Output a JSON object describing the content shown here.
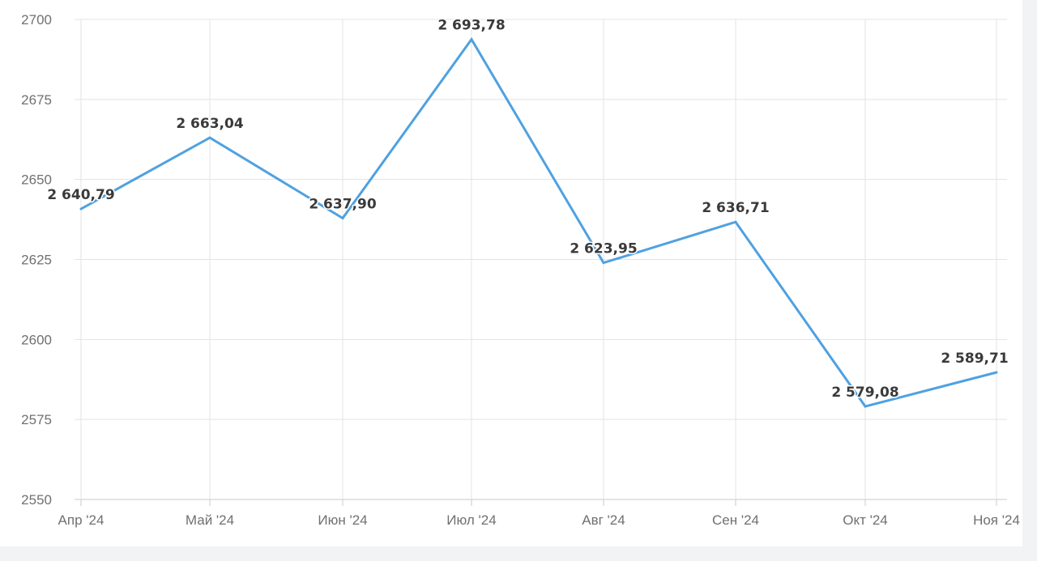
{
  "chart_data": {
    "type": "line",
    "categories": [
      "Апр '24",
      "Май '24",
      "Июн '24",
      "Июл '24",
      "Авг '24",
      "Сен '24",
      "Окт '24",
      "Ноя '24"
    ],
    "series": [
      {
        "values": [
          2640.79,
          2663.04,
          2637.9,
          2693.78,
          2623.95,
          2636.71,
          2579.08,
          2589.71
        ],
        "color": "#4fa1e0"
      }
    ],
    "data_labels": [
      "2 640,79",
      "2 663,04",
      "2 637,90",
      "2 693,78",
      "2 623,95",
      "2 636,71",
      "2 579,08",
      "2 589,71"
    ],
    "y_ticks": [
      "2550",
      "2575",
      "2600",
      "2625",
      "2650",
      "2675",
      "2700"
    ],
    "y_tick_values": [
      2550,
      2575,
      2600,
      2625,
      2650,
      2675,
      2700
    ],
    "ylim": [
      2550,
      2700
    ],
    "grid": true,
    "legend": "none",
    "title": "",
    "xlabel": "",
    "ylabel": ""
  }
}
